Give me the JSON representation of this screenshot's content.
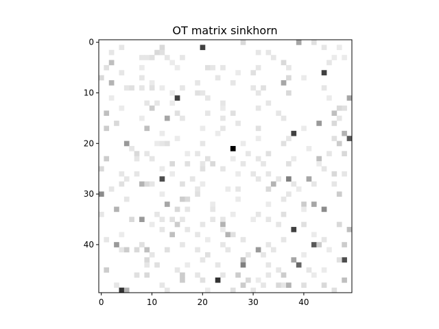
{
  "chart_data": {
    "type": "heatmap",
    "title": "OT matrix sinkhorn",
    "xlabel": "",
    "ylabel": "",
    "rows": 50,
    "cols": 50,
    "colormap": "gray_r",
    "background_color": "#ffffff",
    "x_ticks": [
      0,
      10,
      20,
      30,
      40
    ],
    "y_ticks": [
      0,
      10,
      20,
      30,
      40
    ],
    "x_tick_labels": [
      "0",
      "10",
      "20",
      "30",
      "40"
    ],
    "y_tick_labels": [
      "0",
      "10",
      "20",
      "30",
      "40"
    ],
    "xlim": [
      -0.5,
      49.5
    ],
    "ylim": [
      49.5,
      -0.5
    ],
    "grid": false,
    "cells": [
      [
        0,
        28,
        0.15
      ],
      [
        0,
        39,
        0.35
      ],
      [
        0,
        42,
        0.12
      ],
      [
        1,
        4,
        0.1
      ],
      [
        1,
        20,
        0.75
      ],
      [
        1,
        12,
        0.15
      ],
      [
        1,
        44,
        0.1
      ],
      [
        1,
        47,
        0.08
      ],
      [
        2,
        2,
        0.1
      ],
      [
        2,
        11,
        0.15
      ],
      [
        2,
        12,
        0.12
      ],
      [
        2,
        31,
        0.1
      ],
      [
        2,
        33,
        0.1
      ],
      [
        3,
        8,
        0.1
      ],
      [
        3,
        9,
        0.1
      ],
      [
        3,
        10,
        0.12
      ],
      [
        3,
        13,
        0.1
      ],
      [
        3,
        16,
        0.1
      ],
      [
        3,
        34,
        0.1
      ],
      [
        3,
        46,
        0.08
      ],
      [
        3,
        48,
        0.08
      ],
      [
        4,
        2,
        0.25
      ],
      [
        4,
        36,
        0.15
      ],
      [
        4,
        14,
        0.08
      ],
      [
        4,
        45,
        0.1
      ],
      [
        5,
        1,
        0.12
      ],
      [
        5,
        21,
        0.12
      ],
      [
        5,
        22,
        0.1
      ],
      [
        5,
        24,
        0.1
      ],
      [
        5,
        31,
        0.1
      ],
      [
        5,
        37,
        0.1
      ],
      [
        5,
        8,
        0.08
      ],
      [
        5,
        15,
        0.08
      ],
      [
        6,
        30,
        0.12
      ],
      [
        6,
        44,
        0.75
      ],
      [
        6,
        4,
        0.1
      ],
      [
        6,
        27,
        0.08
      ],
      [
        7,
        0,
        0.15
      ],
      [
        7,
        8,
        0.1
      ],
      [
        7,
        23,
        0.1
      ],
      [
        7,
        40,
        0.08
      ],
      [
        7,
        37,
        0.15
      ],
      [
        8,
        2,
        0.3
      ],
      [
        8,
        36,
        0.35
      ],
      [
        8,
        10,
        0.08
      ],
      [
        8,
        26,
        0.1
      ],
      [
        8,
        19,
        0.1
      ],
      [
        9,
        5,
        0.1
      ],
      [
        9,
        6,
        0.12
      ],
      [
        9,
        8,
        0.1
      ],
      [
        9,
        10,
        0.12
      ],
      [
        9,
        12,
        0.08
      ],
      [
        9,
        16,
        0.1
      ],
      [
        9,
        30,
        0.1
      ],
      [
        9,
        32,
        0.12
      ],
      [
        9,
        44,
        0.1
      ],
      [
        10,
        19,
        0.12
      ],
      [
        10,
        37,
        0.15
      ],
      [
        10,
        20,
        0.1
      ],
      [
        10,
        31,
        0.1
      ],
      [
        10,
        14,
        0.08
      ],
      [
        11,
        15,
        0.75
      ],
      [
        11,
        49,
        0.35
      ],
      [
        11,
        21,
        0.1
      ],
      [
        11,
        45,
        0.08
      ],
      [
        11,
        2,
        0.08
      ],
      [
        12,
        9,
        0.1
      ],
      [
        12,
        11,
        0.1
      ],
      [
        12,
        33,
        0.1
      ],
      [
        12,
        14,
        0.08
      ],
      [
        12,
        24,
        0.1
      ],
      [
        13,
        4,
        0.08
      ],
      [
        13,
        10,
        0.2
      ],
      [
        13,
        31,
        0.1
      ],
      [
        13,
        47,
        0.15
      ],
      [
        13,
        48,
        0.12
      ],
      [
        13,
        24,
        0.08
      ],
      [
        14,
        1,
        0.25
      ],
      [
        14,
        15,
        0.12
      ],
      [
        14,
        21,
        0.1
      ],
      [
        14,
        26,
        0.12
      ],
      [
        14,
        46,
        0.25
      ],
      [
        14,
        35,
        0.1
      ],
      [
        15,
        13,
        0.35
      ],
      [
        15,
        16,
        0.1
      ],
      [
        15,
        24,
        0.1
      ],
      [
        15,
        36,
        0.1
      ],
      [
        15,
        47,
        0.1
      ],
      [
        15,
        8,
        0.08
      ],
      [
        16,
        3,
        0.15
      ],
      [
        16,
        43,
        0.4
      ],
      [
        16,
        27,
        0.1
      ],
      [
        16,
        46,
        0.15
      ],
      [
        17,
        1,
        0.2
      ],
      [
        17,
        9,
        0.25
      ],
      [
        17,
        24,
        0.1
      ],
      [
        17,
        31,
        0.12
      ],
      [
        17,
        20,
        0.08
      ],
      [
        17,
        40,
        0.08
      ],
      [
        18,
        38,
        0.75
      ],
      [
        18,
        48,
        0.3
      ],
      [
        18,
        12,
        0.08
      ],
      [
        18,
        23,
        0.08
      ],
      [
        19,
        49,
        0.65
      ],
      [
        19,
        37,
        0.1
      ],
      [
        19,
        15,
        0.08
      ],
      [
        19,
        46,
        0.12
      ],
      [
        19,
        31,
        0.08
      ],
      [
        20,
        5,
        0.4
      ],
      [
        20,
        12,
        0.1
      ],
      [
        20,
        13,
        0.12
      ],
      [
        20,
        20,
        0.1
      ],
      [
        20,
        36,
        0.12
      ],
      [
        20,
        47,
        0.2
      ],
      [
        20,
        11,
        0.08
      ],
      [
        20,
        28,
        0.08
      ],
      [
        21,
        26,
        1.0
      ],
      [
        21,
        6,
        0.1
      ],
      [
        21,
        41,
        0.08
      ],
      [
        22,
        7,
        0.15
      ],
      [
        22,
        9,
        0.1
      ],
      [
        22,
        19,
        0.1
      ],
      [
        22,
        29,
        0.1
      ],
      [
        22,
        33,
        0.12
      ],
      [
        22,
        48,
        0.15
      ],
      [
        22,
        17,
        0.08
      ],
      [
        22,
        45,
        0.1
      ],
      [
        23,
        1,
        0.2
      ],
      [
        23,
        7,
        0.1
      ],
      [
        23,
        10,
        0.1
      ],
      [
        23,
        26,
        0.08
      ],
      [
        23,
        31,
        0.1
      ],
      [
        23,
        43,
        0.25
      ],
      [
        23,
        21,
        0.12
      ],
      [
        23,
        38,
        0.08
      ],
      [
        24,
        14,
        0.15
      ],
      [
        24,
        17,
        0.12
      ],
      [
        24,
        20,
        0.1
      ],
      [
        24,
        22,
        0.15
      ],
      [
        24,
        28,
        0.1
      ],
      [
        24,
        32,
        0.1
      ],
      [
        24,
        37,
        0.12
      ],
      [
        24,
        43,
        0.08
      ],
      [
        25,
        0,
        0.15
      ],
      [
        25,
        20,
        0.12
      ],
      [
        25,
        12,
        0.08
      ],
      [
        25,
        24,
        0.1
      ],
      [
        25,
        44,
        0.1
      ],
      [
        26,
        4,
        0.1
      ],
      [
        26,
        7,
        0.1
      ],
      [
        26,
        27,
        0.08
      ],
      [
        26,
        33,
        0.1
      ],
      [
        26,
        46,
        0.15
      ],
      [
        26,
        30,
        0.1
      ],
      [
        26,
        48,
        0.1
      ],
      [
        26,
        14,
        0.08
      ],
      [
        27,
        5,
        0.1
      ],
      [
        27,
        12,
        0.7
      ],
      [
        27,
        31,
        0.1
      ],
      [
        27,
        35,
        0.1
      ],
      [
        27,
        37,
        0.5
      ],
      [
        27,
        41,
        0.35
      ],
      [
        27,
        18,
        0.1
      ],
      [
        28,
        4,
        0.12
      ],
      [
        28,
        8,
        0.3
      ],
      [
        28,
        9,
        0.15
      ],
      [
        28,
        10,
        0.1
      ],
      [
        28,
        16,
        0.12
      ],
      [
        28,
        20,
        0.08
      ],
      [
        28,
        34,
        0.3
      ],
      [
        28,
        38,
        0.1
      ],
      [
        28,
        42,
        0.1
      ],
      [
        28,
        46,
        0.1
      ],
      [
        29,
        2,
        0.1
      ],
      [
        29,
        19,
        0.1
      ],
      [
        29,
        27,
        0.1
      ],
      [
        29,
        33,
        0.15
      ],
      [
        29,
        25,
        0.08
      ],
      [
        29,
        39,
        0.08
      ],
      [
        30,
        0,
        0.45
      ],
      [
        30,
        19,
        0.12
      ],
      [
        30,
        37,
        0.1
      ],
      [
        30,
        47,
        0.2
      ],
      [
        30,
        12,
        0.08
      ],
      [
        31,
        5,
        0.1
      ],
      [
        31,
        16,
        0.2
      ],
      [
        31,
        17,
        0.15
      ],
      [
        31,
        36,
        0.1
      ],
      [
        31,
        27,
        0.08
      ],
      [
        32,
        13,
        0.35
      ],
      [
        32,
        40,
        0.2
      ],
      [
        32,
        42,
        0.35
      ],
      [
        32,
        33,
        0.08
      ],
      [
        32,
        22,
        0.08
      ],
      [
        33,
        3,
        0.3
      ],
      [
        33,
        15,
        0.15
      ],
      [
        33,
        17,
        0.1
      ],
      [
        33,
        22,
        0.1
      ],
      [
        33,
        44,
        0.45
      ],
      [
        33,
        40,
        0.08
      ],
      [
        34,
        0,
        0.1
      ],
      [
        34,
        11,
        0.1
      ],
      [
        34,
        31,
        0.1
      ],
      [
        34,
        36,
        0.12
      ],
      [
        34,
        26,
        0.08
      ],
      [
        35,
        6,
        0.15
      ],
      [
        35,
        8,
        0.4
      ],
      [
        35,
        12,
        0.1
      ],
      [
        35,
        14,
        0.12
      ],
      [
        35,
        16,
        0.1
      ],
      [
        35,
        22,
        0.1
      ],
      [
        35,
        24,
        0.1
      ],
      [
        35,
        30,
        0.08
      ],
      [
        35,
        33,
        0.1
      ],
      [
        36,
        15,
        0.2
      ],
      [
        36,
        20,
        0.1
      ],
      [
        36,
        24,
        0.3
      ],
      [
        36,
        35,
        0.1
      ],
      [
        36,
        40,
        0.12
      ],
      [
        36,
        47,
        0.15
      ],
      [
        36,
        10,
        0.08
      ],
      [
        37,
        12,
        0.1
      ],
      [
        37,
        17,
        0.1
      ],
      [
        37,
        38,
        0.75
      ],
      [
        37,
        49,
        0.25
      ],
      [
        37,
        24,
        0.08
      ],
      [
        38,
        14,
        0.25
      ],
      [
        38,
        19,
        0.1
      ],
      [
        38,
        25,
        0.3
      ],
      [
        38,
        26,
        0.12
      ],
      [
        38,
        4,
        0.08
      ],
      [
        38,
        42,
        0.08
      ],
      [
        39,
        1,
        0.1
      ],
      [
        39,
        28,
        0.1
      ],
      [
        39,
        36,
        0.1
      ],
      [
        39,
        44,
        0.1
      ],
      [
        39,
        21,
        0.08
      ],
      [
        40,
        3,
        0.4
      ],
      [
        40,
        8,
        0.12
      ],
      [
        40,
        16,
        0.1
      ],
      [
        40,
        24,
        0.1
      ],
      [
        40,
        33,
        0.1
      ],
      [
        40,
        42,
        0.65
      ],
      [
        40,
        43,
        0.2
      ],
      [
        40,
        48,
        0.2
      ],
      [
        41,
        4,
        0.1
      ],
      [
        41,
        5,
        0.2
      ],
      [
        41,
        7,
        0.15
      ],
      [
        41,
        9,
        0.25
      ],
      [
        41,
        13,
        0.12
      ],
      [
        41,
        19,
        0.1
      ],
      [
        41,
        25,
        0.1
      ],
      [
        41,
        31,
        0.4
      ],
      [
        41,
        34,
        0.1
      ],
      [
        41,
        45,
        0.08
      ],
      [
        42,
        10,
        0.1
      ],
      [
        42,
        21,
        0.12
      ],
      [
        42,
        29,
        0.1
      ],
      [
        42,
        32,
        0.1
      ],
      [
        42,
        40,
        0.08
      ],
      [
        43,
        9,
        0.15
      ],
      [
        43,
        20,
        0.1
      ],
      [
        43,
        28,
        0.25
      ],
      [
        43,
        38,
        0.35
      ],
      [
        43,
        48,
        0.7
      ],
      [
        43,
        47,
        0.12
      ],
      [
        44,
        9,
        0.1
      ],
      [
        44,
        11,
        0.12
      ],
      [
        44,
        17,
        0.08
      ],
      [
        44,
        23,
        0.1
      ],
      [
        44,
        28,
        0.5
      ],
      [
        44,
        39,
        0.6
      ],
      [
        44,
        33,
        0.1
      ],
      [
        45,
        1,
        0.2
      ],
      [
        45,
        15,
        0.1
      ],
      [
        45,
        35,
        0.1
      ],
      [
        45,
        41,
        0.1
      ],
      [
        45,
        44,
        0.08
      ],
      [
        46,
        7,
        0.12
      ],
      [
        46,
        9,
        0.15
      ],
      [
        46,
        16,
        0.2
      ],
      [
        46,
        19,
        0.1
      ],
      [
        46,
        24,
        0.1
      ],
      [
        46,
        27,
        0.2
      ],
      [
        46,
        33,
        0.1
      ],
      [
        46,
        36,
        0.2
      ],
      [
        46,
        42,
        0.08
      ],
      [
        47,
        23,
        0.8
      ],
      [
        47,
        16,
        0.2
      ],
      [
        47,
        20,
        0.12
      ],
      [
        47,
        29,
        0.15
      ],
      [
        47,
        48,
        0.25
      ],
      [
        47,
        31,
        0.08
      ],
      [
        48,
        3,
        0.1
      ],
      [
        48,
        12,
        0.1
      ],
      [
        48,
        28,
        0.2
      ],
      [
        48,
        32,
        0.1
      ],
      [
        48,
        35,
        0.15
      ],
      [
        48,
        36,
        0.1
      ],
      [
        48,
        37,
        0.3
      ],
      [
        48,
        40,
        0.12
      ],
      [
        48,
        44,
        0.15
      ],
      [
        49,
        4,
        0.8
      ],
      [
        49,
        5,
        0.3
      ],
      [
        49,
        13,
        0.1
      ],
      [
        49,
        26,
        0.12
      ],
      [
        49,
        30,
        0.1
      ],
      [
        49,
        46,
        0.12
      ],
      [
        49,
        21,
        0.08
      ]
    ]
  }
}
